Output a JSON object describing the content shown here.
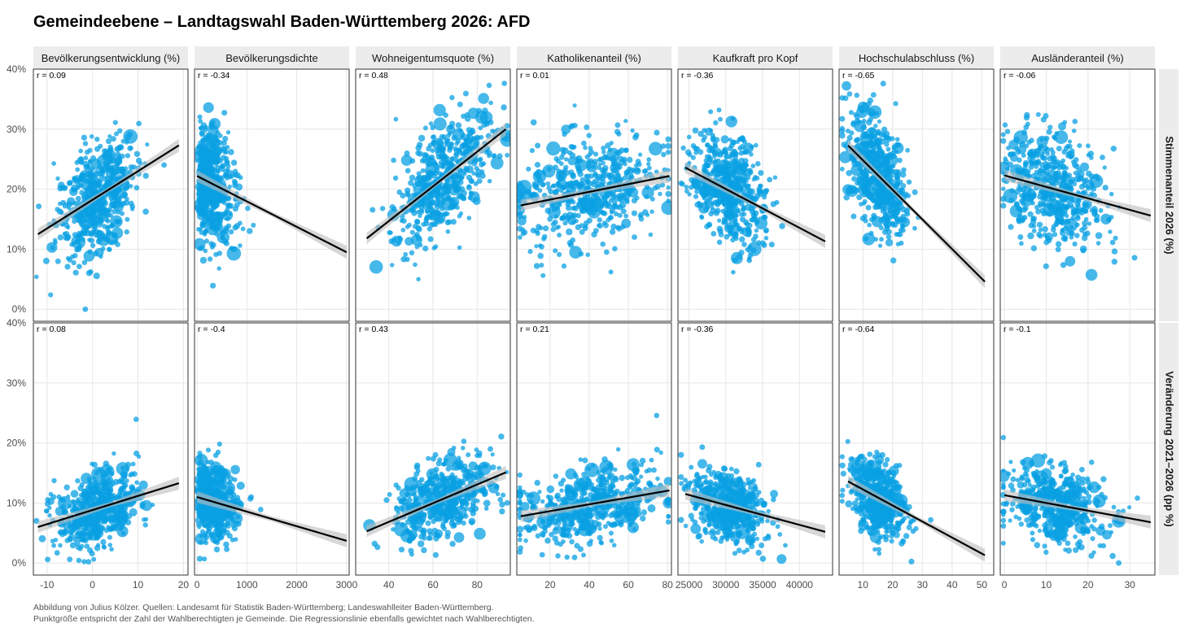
{
  "title": "Gemeindeebene – Landtagswahl Baden-Württemberg 2026: AFD",
  "caption_line1": "Abbildung von Julius Kölzer. Quellen: Landesamt für Statistik Baden-Württemberg; Landeswahlleiter Baden-Württemberg.",
  "caption_line2": "Punktgröße entspricht der Zahl der Wahlberechtigten je Gemeinde. Die Regressionslinie ebenfalls gewichtet nach Wahlberechtigten.",
  "colors": {
    "point": "#0aa0e3",
    "line": "#000000",
    "band": "#bdbdbd",
    "strip": "#ececec",
    "grid": "#e6e6e6"
  },
  "chart_data": {
    "type": "scatter",
    "columns": [
      {
        "label": "Bevölkerungsentwicklung (%)",
        "xlim": [
          -13,
          21
        ],
        "ticks": [
          -10,
          0,
          10,
          20
        ],
        "tick_labels": [
          "-10",
          "0",
          "10",
          "20"
        ],
        "center": 1,
        "spread": 4.5
      },
      {
        "label": "Bevölkerungsdichte",
        "xlim": [
          -50,
          3050
        ],
        "ticks": [
          0,
          1000,
          2000,
          3000
        ],
        "tick_labels": [
          "0",
          "1000",
          "2000",
          "3000"
        ],
        "center": 350,
        "spread": 350
      },
      {
        "label": "Wohneigentumsquote (%)",
        "xlim": [
          25,
          95
        ],
        "ticks": [
          40,
          60,
          80
        ],
        "tick_labels": [
          "40",
          "60",
          "80"
        ],
        "center": 65,
        "spread": 11
      },
      {
        "label": "Katholikenanteil (%)",
        "xlim": [
          3,
          82
        ],
        "ticks": [
          20,
          40,
          60,
          80
        ],
        "tick_labels": [
          "20",
          "40",
          "60",
          "80"
        ],
        "center": 40,
        "spread": 18
      },
      {
        "label": "Kaufkraft pro Kopf",
        "xlim": [
          23500,
          44500
        ],
        "ticks": [
          25000,
          30000,
          35000,
          40000
        ],
        "tick_labels": [
          "25000",
          "30000",
          "35000",
          "40000"
        ],
        "center": 30500,
        "spread": 2500
      },
      {
        "label": "Hochschulabschluss (%)",
        "xlim": [
          2,
          54
        ],
        "ticks": [
          10,
          20,
          30,
          40,
          50
        ],
        "tick_labels": [
          "10",
          "20",
          "30",
          "40",
          "50"
        ],
        "center": 15,
        "spread": 5
      },
      {
        "label": "Ausländeranteil (%)",
        "xlim": [
          -1,
          36
        ],
        "ticks": [
          0,
          10,
          20,
          30
        ],
        "tick_labels": [
          "0",
          "10",
          "20",
          "30"
        ],
        "center": 12,
        "spread": 6
      }
    ],
    "rows": [
      {
        "label": "Stimmenanteil 2026 (%)",
        "ylim": [
          -2,
          40
        ],
        "yticks": [
          0,
          10,
          20,
          30,
          40
        ],
        "ytick_labels": [
          "0%",
          "10%",
          "20%",
          "30%",
          "40%"
        ],
        "mean": 22,
        "sd": 4.5,
        "r": [
          "r = 0.09",
          "r = -0.34",
          "r = 0.48",
          "r = 0.01",
          "r = -0.36",
          "r = -0.65",
          "r = -0.06"
        ],
        "fit": [
          [
            [
              -12,
              12.5
            ],
            [
              19,
              27.3
            ]
          ],
          [
            [
              0,
              22.2
            ],
            [
              3000,
              9.5
            ]
          ],
          [
            [
              30,
              11.8
            ],
            [
              93,
              30.0
            ]
          ],
          [
            [
              5,
              17.3
            ],
            [
              81,
              22.2
            ]
          ],
          [
            [
              24500,
              23.6
            ],
            [
              43500,
              11.3
            ]
          ],
          [
            [
              5,
              27.3
            ],
            [
              51,
              4.6
            ]
          ],
          [
            [
              0,
              22.3
            ],
            [
              35,
              15.6
            ]
          ]
        ]
      },
      {
        "label": "Veränderung 2021–2026 (pp %)",
        "ylim": [
          -2,
          40
        ],
        "yticks": [
          0,
          10,
          20,
          30,
          40
        ],
        "ytick_labels": [
          "0%",
          "10%",
          "20%",
          "30%",
          "40%"
        ],
        "mean": 10.5,
        "sd": 3.0,
        "r": [
          "r = 0.08",
          "r = -0.4",
          "r = 0.43",
          "r = 0.21",
          "r = -0.36",
          "r = -0.64",
          "r = -0.1"
        ],
        "fit": [
          [
            [
              -12,
              6.0
            ],
            [
              19,
              13.3
            ]
          ],
          [
            [
              0,
              11.0
            ],
            [
              3000,
              3.7
            ]
          ],
          [
            [
              30,
              5.3
            ],
            [
              93,
              15.1
            ]
          ],
          [
            [
              5,
              7.8
            ],
            [
              81,
              12.1
            ]
          ],
          [
            [
              24500,
              11.5
            ],
            [
              43500,
              5.2
            ]
          ],
          [
            [
              5,
              13.6
            ],
            [
              51,
              1.3
            ]
          ],
          [
            [
              0,
              11.3
            ],
            [
              35,
              6.8
            ]
          ]
        ]
      }
    ]
  }
}
